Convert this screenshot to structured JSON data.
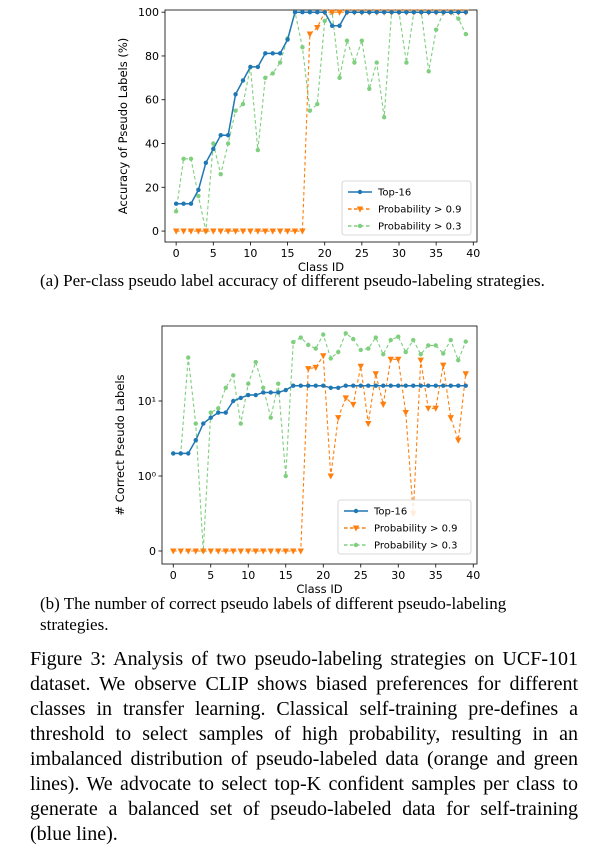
{
  "subcaption_a": "(a) Per-class pseudo label accuracy of different pseudo-labeling strategies.",
  "subcaption_b": "(b) The number of correct pseudo labels of different pseudo-labeling strategies.",
  "figure_caption": "Figure 3: Analysis of two pseudo-labeling strategies on UCF-101 dataset. We observe CLIP shows biased preferences for different classes in transfer learning. Classical self-training pre-defines a threshold to select samples of high probability, resulting in an imbalanced distribution of pseudo-labeled data (orange and green lines). We advocate to select top-K confident samples per class to generate a balanced set of pseudo-labeled data for self-training (blue line).",
  "chart_data": [
    {
      "type": "line",
      "xlabel": "Class ID",
      "ylabel": "Accuracy of Pseudo Labels (%)",
      "xlim": [
        -1.5,
        40.5
      ],
      "ylim": [
        -5,
        101
      ],
      "xticks": [
        "0",
        "5",
        "10",
        "15",
        "20",
        "25",
        "30",
        "35",
        "40"
      ],
      "yticks": [
        "0",
        "20",
        "40",
        "60",
        "80",
        "100"
      ],
      "legend_position": "lower-right",
      "grid": false,
      "x": [
        0,
        1,
        2,
        3,
        4,
        5,
        6,
        7,
        8,
        9,
        10,
        11,
        12,
        13,
        14,
        15,
        16,
        17,
        18,
        19,
        20,
        21,
        22,
        23,
        24,
        25,
        26,
        27,
        28,
        29,
        30,
        31,
        32,
        33,
        34,
        35,
        36,
        37,
        38,
        39
      ],
      "series": [
        {
          "name": "Top-16",
          "color": "#1f77b4",
          "marker": "circle",
          "values": [
            12.5,
            12.5,
            12.5,
            18.8,
            31.2,
            37.5,
            43.8,
            43.8,
            62.5,
            68.8,
            75,
            75,
            81.2,
            81.2,
            81.2,
            87.5,
            100,
            100,
            100,
            100,
            100,
            93.8,
            93.8,
            100,
            100,
            100,
            100,
            100,
            100,
            100,
            100,
            100,
            100,
            100,
            100,
            100,
            100,
            100,
            100,
            100
          ]
        },
        {
          "name": "Probability > 0.9",
          "color": "#ff7f0e",
          "marker": "triangle-down",
          "values": [
            0,
            0,
            0,
            0,
            0,
            0,
            0,
            0,
            0,
            0,
            0,
            0,
            0,
            0,
            0,
            0,
            0,
            0,
            90,
            93,
            100,
            100,
            100,
            100,
            100,
            100,
            100,
            100,
            100,
            100,
            100,
            100,
            100,
            100,
            100,
            100,
            100,
            100,
            100,
            100
          ]
        },
        {
          "name": "Probability > 0.3",
          "color": "#7fcf7f",
          "marker": "circle",
          "values": [
            9,
            33,
            33,
            16,
            0,
            40,
            26,
            40,
            55,
            58,
            75,
            37,
            70,
            72,
            77,
            88,
            100,
            84,
            55,
            58,
            96,
            100,
            70,
            87,
            77,
            87,
            65,
            77,
            52,
            100,
            100,
            77,
            100,
            100,
            73,
            92,
            100,
            100,
            97,
            90
          ]
        }
      ]
    },
    {
      "type": "line",
      "xlabel": "Class ID",
      "ylabel": "# Correct Pseudo Labels",
      "yscale": "symlog",
      "xlim": [
        -1.5,
        40.5
      ],
      "xticks": [
        "0",
        "5",
        "10",
        "15",
        "20",
        "25",
        "30",
        "35",
        "40"
      ],
      "yticks": [
        "0",
        "10⁰",
        "10¹"
      ],
      "legend_position": "lower-right",
      "grid": false,
      "x": [
        0,
        1,
        2,
        3,
        4,
        5,
        6,
        7,
        8,
        9,
        10,
        11,
        12,
        13,
        14,
        15,
        16,
        17,
        18,
        19,
        20,
        21,
        22,
        23,
        24,
        25,
        26,
        27,
        28,
        29,
        30,
        31,
        32,
        33,
        34,
        35,
        36,
        37,
        38,
        39
      ],
      "series": [
        {
          "name": "Top-16",
          "color": "#1f77b4",
          "marker": "circle",
          "values": [
            2,
            2,
            2,
            3,
            5,
            6,
            7,
            7,
            10,
            11,
            12,
            12,
            13,
            13,
            13,
            14,
            16,
            16,
            16,
            16,
            16,
            15,
            15,
            16,
            16,
            16,
            16,
            16,
            16,
            16,
            16,
            16,
            16,
            16,
            16,
            16,
            16,
            16,
            16,
            16
          ]
        },
        {
          "name": "Probability > 0.9",
          "color": "#ff7f0e",
          "marker": "triangle-down",
          "values": [
            0,
            0,
            0,
            0,
            0,
            0,
            0,
            0,
            0,
            0,
            0,
            0,
            0,
            0,
            0,
            0,
            0,
            0,
            27,
            28,
            40,
            1,
            6,
            11,
            9,
            29,
            5,
            23,
            9,
            36,
            36,
            7,
            0.5,
            35,
            8,
            8,
            30,
            6,
            3,
            23
          ]
        },
        {
          "name": "Probability > 0.3",
          "color": "#7fcf7f",
          "marker": "circle",
          "values": [
            2,
            2,
            38,
            5,
            0,
            7,
            8,
            15,
            22,
            5,
            17,
            33,
            15,
            6,
            17,
            1,
            61,
            70,
            56,
            50,
            77,
            37,
            45,
            80,
            67,
            48,
            50,
            70,
            42,
            65,
            72,
            45,
            65,
            42,
            55,
            55,
            43,
            65,
            35,
            62
          ]
        }
      ]
    }
  ]
}
